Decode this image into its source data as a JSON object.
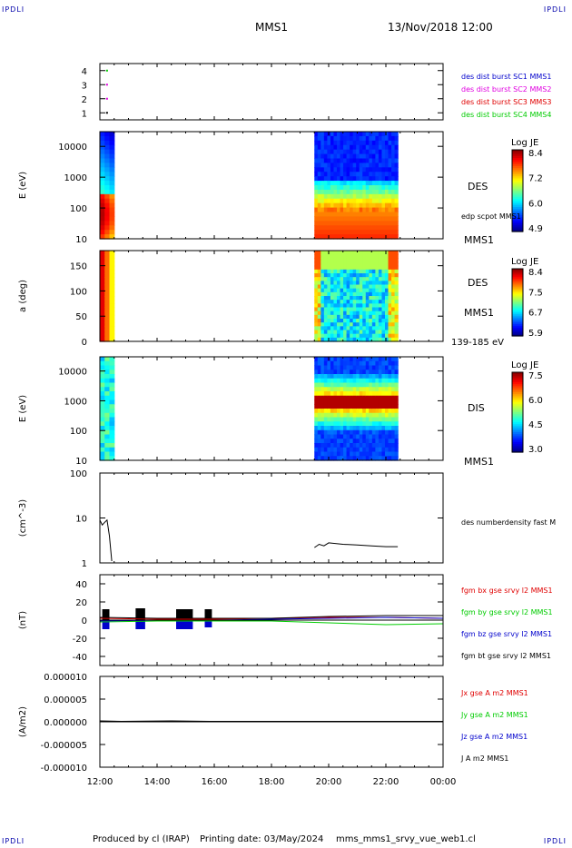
{
  "header": {
    "corner_label": "IPDLI",
    "title": "MMS1",
    "datetime": "13/Nov/2018 12:00"
  },
  "footer": {
    "produced_by": "Produced by cl (IRAP)",
    "printing_date": "Printing date: 03/May/2024",
    "filename": "mms_mms1_srvy_vue_web1.cl"
  },
  "colors": {
    "red": "#e00000",
    "magenta": "#e000e0",
    "green": "#00cc00",
    "blue": "#0000cc",
    "black": "#000000",
    "dark_red": "#cc0000"
  },
  "chart_data": [
    {
      "id": "burst-availability",
      "type": "scatter",
      "ylabel": "",
      "ylim": [
        0.5,
        4.5
      ],
      "yticks": [
        "1",
        "2",
        "3",
        "4"
      ],
      "legend": [
        {
          "label": "des dist burst SC1 MMS1",
          "color": "#0000cc"
        },
        {
          "label": "des dist burst SC2 MMS2",
          "color": "#e000e0"
        },
        {
          "label": "des dist burst SC3 MMS3",
          "color": "#e00000"
        },
        {
          "label": "des dist burst SC4 MMS4",
          "color": "#00cc00"
        }
      ],
      "points": [
        {
          "x": "12:15",
          "y": 4,
          "color": "#00cc00"
        },
        {
          "x": "12:15",
          "y": 3,
          "color": "#e000e0"
        },
        {
          "x": "12:15",
          "y": 2,
          "color": "#e000e0"
        },
        {
          "x": "12:15",
          "y": 1,
          "color": "#000000"
        }
      ]
    },
    {
      "id": "des-energy-spectrogram",
      "type": "heatmap",
      "ylabel": "E (eV)",
      "yscale": "log",
      "ylim": [
        10,
        30000
      ],
      "yticks": [
        "10",
        "100",
        "1000",
        "10000"
      ],
      "side_label": "DES",
      "side_note": "edp scpot MMS1",
      "spacecraft": "MMS1",
      "colorbar": {
        "title": "Log JE",
        "ticks": [
          "8.4",
          "7.2",
          "6.0",
          "4.9"
        ]
      },
      "data_intervals": [
        [
          "12:00",
          "12:30"
        ],
        [
          "19:30",
          "22:25"
        ]
      ]
    },
    {
      "id": "des-pitch-angle",
      "type": "heatmap",
      "ylabel": "a (deg)",
      "ylim": [
        0,
        180
      ],
      "yticks": [
        "0",
        "50",
        "100",
        "150"
      ],
      "side_label": "DES",
      "spacecraft": "MMS1",
      "energy_range": "139-185 eV",
      "colorbar": {
        "title": "Log JE",
        "ticks": [
          "8.4",
          "7.5",
          "6.7",
          "5.9"
        ]
      },
      "data_intervals": [
        [
          "12:00",
          "12:30"
        ],
        [
          "19:30",
          "22:25"
        ]
      ]
    },
    {
      "id": "dis-energy-spectrogram",
      "type": "heatmap",
      "ylabel": "E (eV)",
      "yscale": "log",
      "ylim": [
        10,
        30000
      ],
      "yticks": [
        "10",
        "100",
        "1000",
        "10000"
      ],
      "side_label": "DIS",
      "spacecraft": "MMS1",
      "colorbar": {
        "title": "Log JE",
        "ticks": [
          "7.5",
          "6.0",
          "4.5",
          "3.0"
        ]
      },
      "data_intervals": [
        [
          "12:00",
          "12:30"
        ],
        [
          "19:30",
          "22:25"
        ]
      ]
    },
    {
      "id": "electron-density",
      "type": "line",
      "ylabel": "(cm^-3)",
      "yscale": "log",
      "ylim": [
        1,
        100
      ],
      "yticks": [
        "1",
        "10",
        "100"
      ],
      "legend": [
        {
          "label": "des numberdensity fast M",
          "color": "#000000"
        }
      ],
      "series": [
        {
          "name": "des numberdensity fast M",
          "x": [
            "12:00",
            "12:05",
            "12:10",
            "12:15",
            "12:20",
            "12:25"
          ],
          "y": [
            9,
            7,
            8,
            9,
            4,
            1.1
          ]
        },
        {
          "name": "des numberdensity fast M",
          "x": [
            "19:30",
            "19:40",
            "19:50",
            "20:00",
            "20:30",
            "21:00",
            "21:30",
            "22:00",
            "22:25"
          ],
          "y": [
            2.2,
            2.6,
            2.4,
            2.8,
            2.6,
            2.5,
            2.4,
            2.3,
            2.3
          ]
        }
      ]
    },
    {
      "id": "magnetic-field",
      "type": "line",
      "ylabel": "(nT)",
      "ylim": [
        -50,
        50
      ],
      "yticks": [
        "-40",
        "-20",
        "0",
        "20",
        "40"
      ],
      "legend": [
        {
          "label": "fgm bx gse srvy l2 MMS1",
          "color": "#e00000"
        },
        {
          "label": "fgm by gse srvy l2 MMS1",
          "color": "#00cc00"
        },
        {
          "label": "fgm bz gse srvy l2 MMS1",
          "color": "#0000cc"
        },
        {
          "label": "fgm bt gse srvy l2 MMS1",
          "color": "#000000"
        }
      ],
      "series": [
        {
          "name": "fgm bx gse srvy l2 MMS1",
          "x": [
            "12:00",
            "14:00",
            "16:00",
            "18:00",
            "20:00",
            "22:00",
            "24:00"
          ],
          "y": [
            2,
            1,
            1,
            2,
            3,
            3,
            2
          ]
        },
        {
          "name": "fgm by gse srvy l2 MMS1",
          "x": [
            "12:00",
            "14:00",
            "16:00",
            "18:00",
            "20:00",
            "22:00",
            "24:00"
          ],
          "y": [
            -2,
            -1,
            -1,
            -1,
            -3,
            -5,
            -4
          ]
        },
        {
          "name": "fgm bz gse srvy l2 MMS1",
          "x": [
            "12:00",
            "14:00",
            "16:00",
            "18:00",
            "20:00",
            "22:00",
            "24:00"
          ],
          "y": [
            -1,
            0,
            0,
            1,
            2,
            3,
            2
          ]
        },
        {
          "name": "fgm bt gse srvy l2 MMS1",
          "x": [
            "12:00",
            "14:00",
            "16:00",
            "18:00",
            "20:00",
            "22:00",
            "24:00"
          ],
          "y": [
            3,
            2,
            2,
            2,
            4,
            5,
            5
          ]
        }
      ],
      "spikes": [
        {
          "from": "12:05",
          "to": "12:20",
          "max": 12,
          "min": -10
        },
        {
          "from": "13:15",
          "to": "13:35",
          "max": 13,
          "min": -10
        },
        {
          "from": "14:40",
          "to": "15:15",
          "max": 12,
          "min": -10
        },
        {
          "from": "15:40",
          "to": "15:55",
          "max": 12,
          "min": -8
        }
      ]
    },
    {
      "id": "current-density",
      "type": "line",
      "ylabel": "(A/m2)",
      "ylim": [
        -1e-05,
        1e-05
      ],
      "yticks": [
        "-0.000010",
        "-0.000005",
        "0.000000",
        "0.000005",
        "0.000010"
      ],
      "legend": [
        {
          "label": "Jx gse A m2 MMS1",
          "color": "#e00000"
        },
        {
          "label": "Jy gse A m2 MMS1",
          "color": "#00cc00"
        },
        {
          "label": "Jz gse A m2 MMS1",
          "color": "#0000cc"
        },
        {
          "label": "J A m2 MMS1",
          "color": "#000000"
        }
      ],
      "series": [
        {
          "name": "J A m2 MMS1",
          "x": [
            "12:00",
            "12:45",
            "14:30",
            "15:50",
            "19:30",
            "22:25",
            "24:00"
          ],
          "y": [
            2e-07,
            1e-07,
            2e-07,
            1e-07,
            1e-07,
            1e-07,
            1e-07
          ]
        }
      ]
    }
  ],
  "x_axis": {
    "ticks": [
      "12:00",
      "14:00",
      "16:00",
      "18:00",
      "20:00",
      "22:00",
      "00:00"
    ]
  }
}
